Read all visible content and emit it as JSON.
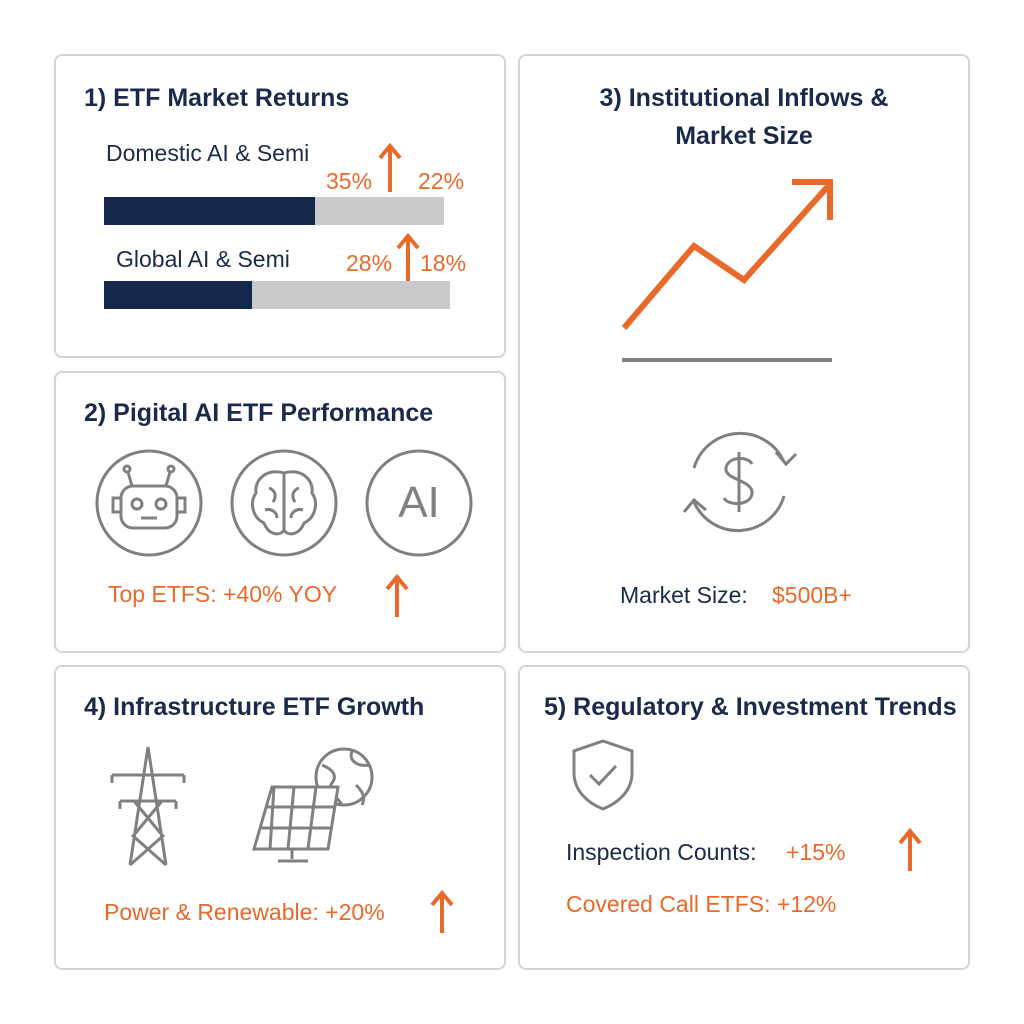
{
  "panels": [
    {
      "title": "1) ETF Market Returns",
      "rows": [
        {
          "label": "Domestic AI & Semi",
          "left": "35%",
          "right": "22%"
        },
        {
          "label": "Global AI & Semi",
          "left": "28%",
          "right": "18%"
        }
      ]
    },
    {
      "title": "2) Pigital AI ETF Performance",
      "icon_text": "AI",
      "note": "Top ETFS: +40% YOY"
    },
    {
      "title_line1": "3) Institutional Inflows &",
      "title_line2": "Market Size",
      "note_label": "Market Size:",
      "note_value": "$500B+"
    },
    {
      "title": "4) Infrastructure ETF Growth",
      "note": "Power & Renewable: +20%"
    },
    {
      "title": "5) Regulatory & Investment Trends",
      "line1_label": "Inspection Counts:",
      "line1_value": "+15%",
      "line2": "Covered Call ETFS: +12%"
    }
  ]
}
